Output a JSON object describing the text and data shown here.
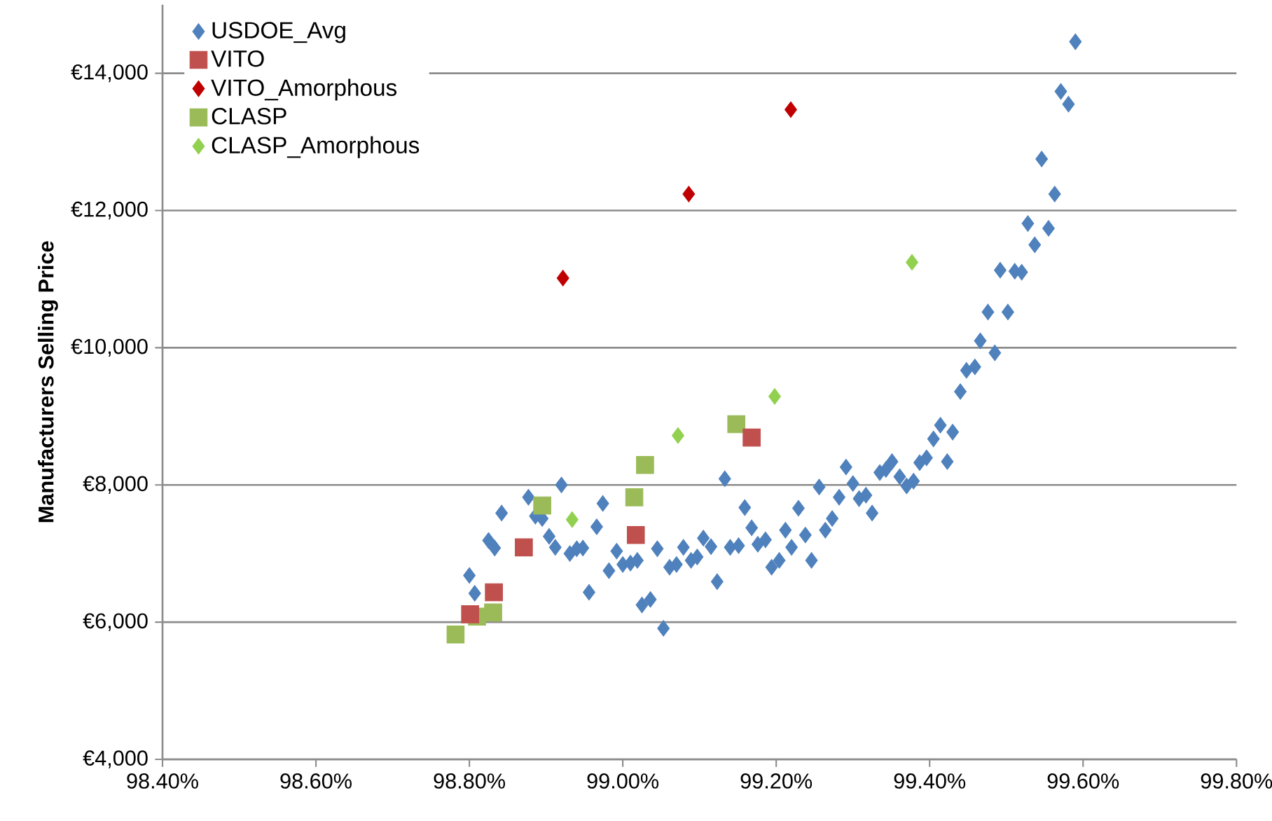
{
  "chart_data": {
    "type": "scatter",
    "ylabel": "Manufacturers Selling Price",
    "xlim": [
      98.4,
      99.8
    ],
    "xticks": [
      {
        "value": 98.4,
        "label": "98.40%"
      },
      {
        "value": 98.6,
        "label": "98.60%"
      },
      {
        "value": 98.8,
        "label": "98.80%"
      },
      {
        "value": 99.0,
        "label": "99.00%"
      },
      {
        "value": 99.2,
        "label": "99.20%"
      },
      {
        "value": 99.4,
        "label": "99.40%"
      },
      {
        "value": 99.6,
        "label": "99.60%"
      },
      {
        "value": 99.8,
        "label": "99.80%"
      }
    ],
    "ylim": [
      4000,
      15000
    ],
    "yticks": [
      {
        "value": 4000,
        "label": "€4,000"
      },
      {
        "value": 6000,
        "label": "€6,000"
      },
      {
        "value": 8000,
        "label": "€8,000"
      },
      {
        "value": 10000,
        "label": "€10,000"
      },
      {
        "value": 12000,
        "label": "€12,000"
      },
      {
        "value": 14000,
        "label": "€14,000"
      }
    ],
    "grid": "y",
    "legend": "top left",
    "series": [
      {
        "name": "USDOE_Avg",
        "color": "#4f81bd",
        "marker": "diamond",
        "x": [
          98.8,
          98.807,
          98.825,
          98.833,
          98.842,
          98.877,
          98.886,
          98.895,
          98.904,
          98.912,
          98.92,
          98.931,
          98.94,
          98.948,
          98.956,
          98.966,
          98.974,
          98.982,
          98.992,
          99.0,
          99.01,
          99.019,
          99.025,
          99.036,
          99.045,
          99.053,
          99.061,
          99.07,
          99.079,
          99.089,
          99.097,
          99.105,
          99.115,
          99.123,
          99.133,
          99.14,
          99.151,
          99.159,
          99.168,
          99.176,
          99.186,
          99.194,
          99.204,
          99.212,
          99.22,
          99.229,
          99.238,
          99.246,
          99.256,
          99.264,
          99.273,
          99.282,
          99.291,
          99.3,
          99.308,
          99.317,
          99.325,
          99.335,
          99.343,
          99.351,
          99.361,
          99.37,
          99.379,
          99.387,
          99.396,
          99.405,
          99.414,
          99.423,
          99.43,
          99.44,
          99.448,
          99.459,
          99.466,
          99.476,
          99.485,
          99.492,
          99.502,
          99.511,
          99.52,
          99.528,
          99.537,
          99.546,
          99.555,
          99.563,
          99.571,
          99.581,
          99.59
        ],
        "values": [
          6680,
          6420,
          7190,
          7080,
          7590,
          7820,
          7545,
          7510,
          7250,
          7090,
          8000,
          7000,
          7070,
          7080,
          6435,
          7390,
          7730,
          6750,
          7035,
          6840,
          6860,
          6900,
          6250,
          6330,
          7070,
          5910,
          6800,
          6840,
          7090,
          6900,
          6950,
          7225,
          7100,
          6590,
          8090,
          7090,
          7115,
          7670,
          7375,
          7135,
          7200,
          6800,
          6900,
          7340,
          7090,
          7660,
          7270,
          6900,
          7970,
          7340,
          7510,
          7820,
          8260,
          8020,
          7800,
          7850,
          7590,
          8180,
          8225,
          8340,
          8120,
          7985,
          8055,
          8325,
          8395,
          8670,
          8870,
          8340,
          8770,
          9360,
          9670,
          9720,
          10100,
          10520,
          9925,
          11130,
          10520,
          11115,
          11100,
          11810,
          11500,
          12750,
          11740,
          12240,
          13735,
          13550,
          14460
        ]
      },
      {
        "name": "VITO",
        "color": "#c0504d",
        "marker": "square",
        "x": [
          98.801,
          98.832,
          98.871,
          99.017,
          99.168
        ],
        "values": [
          6115,
          6435,
          7090,
          7270,
          8690
        ]
      },
      {
        "name": "VITO_Amorphous",
        "color": "#c00000",
        "marker": "diamond",
        "x": [
          98.922,
          99.086,
          99.219
        ],
        "values": [
          11015,
          12240,
          13470
        ]
      },
      {
        "name": "CLASP",
        "color": "#9bbb59",
        "marker": "square",
        "x": [
          98.782,
          98.81,
          98.831,
          98.895,
          99.015,
          99.029,
          99.148
        ],
        "values": [
          5820,
          6080,
          6140,
          7700,
          7820,
          8290,
          8885
        ]
      },
      {
        "name": "CLASP_Amorphous",
        "color": "#92d050",
        "marker": "diamond",
        "x": [
          98.934,
          99.072,
          99.198,
          99.377
        ],
        "values": [
          7495,
          8720,
          9290,
          11245
        ]
      }
    ]
  }
}
